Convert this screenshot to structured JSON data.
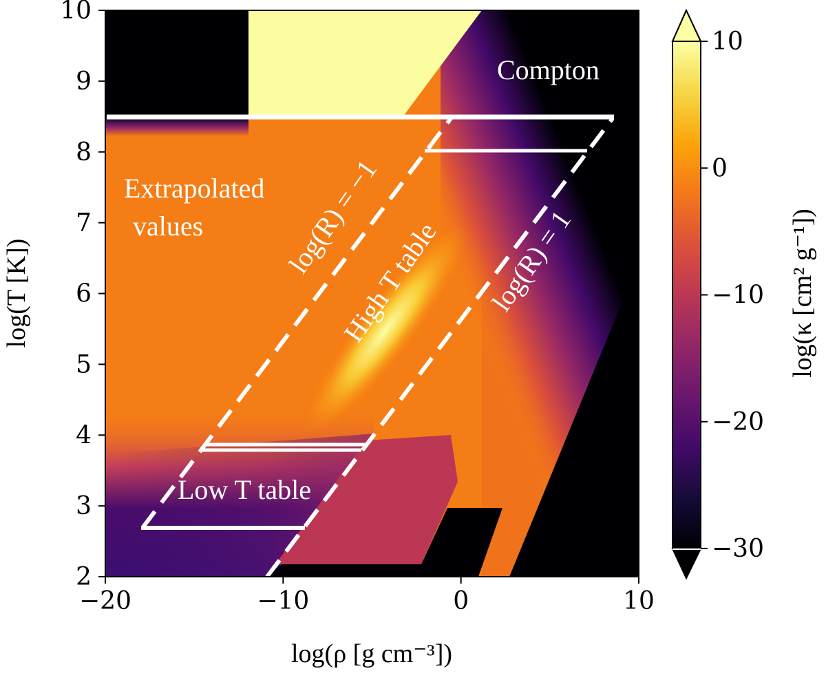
{
  "chart_data": {
    "type": "heatmap",
    "xlabel": "log(ρ [g cm⁻³])",
    "ylabel": "log(T [K])",
    "xlim": [
      -20,
      10
    ],
    "ylim": [
      2,
      10
    ],
    "xticks": [
      "−20",
      "−10",
      "0",
      "10"
    ],
    "yticks": [
      "2",
      "3",
      "4",
      "5",
      "6",
      "7",
      "8",
      "9",
      "10"
    ],
    "colorbar": {
      "label": "log(κ [cm² g⁻¹])",
      "range": [
        -30,
        10
      ],
      "ticks": [
        "10",
        "0",
        "−10",
        "−20",
        "−30"
      ],
      "colormap": "inferno",
      "extend": "both"
    },
    "annotations": {
      "extrapolated_1": "Extrapolated",
      "extrapolated_2": "values",
      "compton": "Compton",
      "low_t": "Low T table",
      "high_t": "High T table",
      "r_minus1": "log(R) = −1",
      "r_plus1": "log(R) = 1"
    },
    "regions": {
      "high_T_table": {
        "logT": [
          3.85,
          8.0
        ],
        "logR": [
          -1,
          1
        ]
      },
      "low_T_table": {
        "logT": [
          2.7,
          3.85
        ],
        "logR": [
          -1,
          1
        ]
      },
      "compton_boundary_logT": 8.5
    }
  }
}
